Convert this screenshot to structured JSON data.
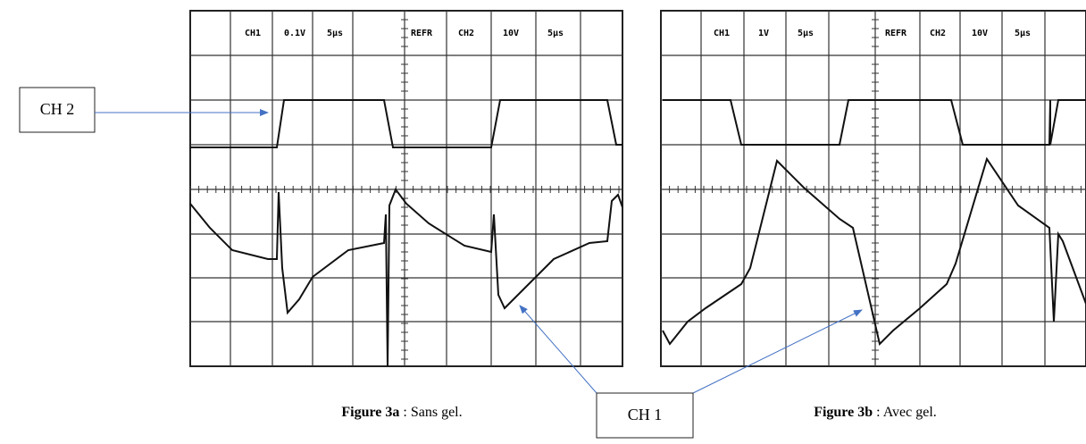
{
  "panels": [
    {
      "header": [
        "CH1",
        "0.1V",
        "5µs",
        "REFR",
        "CH2",
        "10V",
        "5µs"
      ],
      "caption_label": "Figure 3a",
      "caption_text": " : Sans gel."
    },
    {
      "header": [
        "CH1",
        "1V",
        "5µs",
        "REFR",
        "CH2",
        "10V",
        "5µs"
      ],
      "caption_label": "Figure 3b",
      "caption_text": " : Avec gel."
    }
  ],
  "labels": {
    "ch2": "CH 2",
    "ch1": "CH 1"
  }
}
